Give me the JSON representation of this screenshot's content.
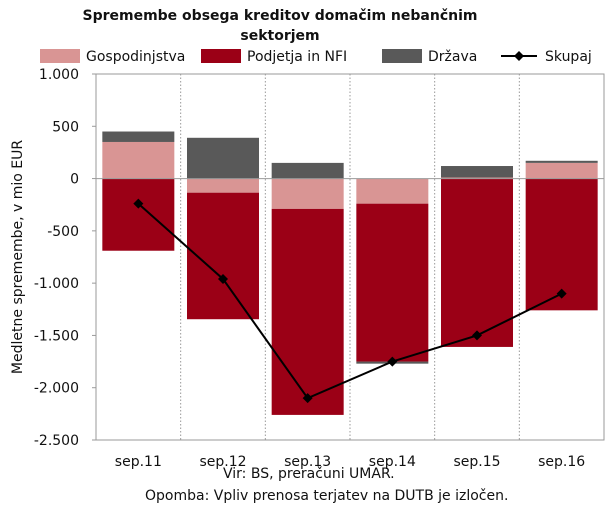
{
  "chart_data": {
    "type": "bar",
    "title": "Spremembe obsega kreditov domačim nebančnim sektorjem",
    "ylabel": "Medletne spremembe, v mio EUR",
    "xlabel": "",
    "categories": [
      "sep.11",
      "sep.12",
      "sep.13",
      "sep.14",
      "sep.15",
      "sep.16"
    ],
    "ylim": [
      -2500,
      1000
    ],
    "yticks": [
      1000,
      500,
      0,
      -500,
      -1000,
      -1500,
      -2000,
      -2500
    ],
    "ytick_labels": [
      "1.000",
      "500",
      "0",
      "-500",
      "-1.000",
      "-1.500",
      "-2.000",
      "-2.500"
    ],
    "stacked": true,
    "grid": "vertical dotted",
    "legend_position": "top",
    "series": [
      {
        "name": "Gospodinjstva",
        "kind": "bar",
        "color": "#d99594",
        "values": [
          350,
          -135,
          -290,
          -240,
          10,
          150
        ]
      },
      {
        "name": "Podjetja in NFI",
        "kind": "bar",
        "color": "#9b0016",
        "values": [
          -690,
          -1210,
          -1970,
          -1510,
          -1610,
          -1260
        ]
      },
      {
        "name": "Država",
        "kind": "bar",
        "color": "#595959",
        "values": [
          100,
          390,
          150,
          -20,
          110,
          20
        ]
      },
      {
        "name": "Skupaj",
        "kind": "line",
        "color": "#000000",
        "values": [
          -240,
          -960,
          -2100,
          -1750,
          -1500,
          -1100
        ]
      }
    ],
    "footer_source": "Vir: BS, preračuni UMAR.",
    "footer_note": "Opomba: Vpliv prenosa terjatev na DUTB je izločen."
  }
}
